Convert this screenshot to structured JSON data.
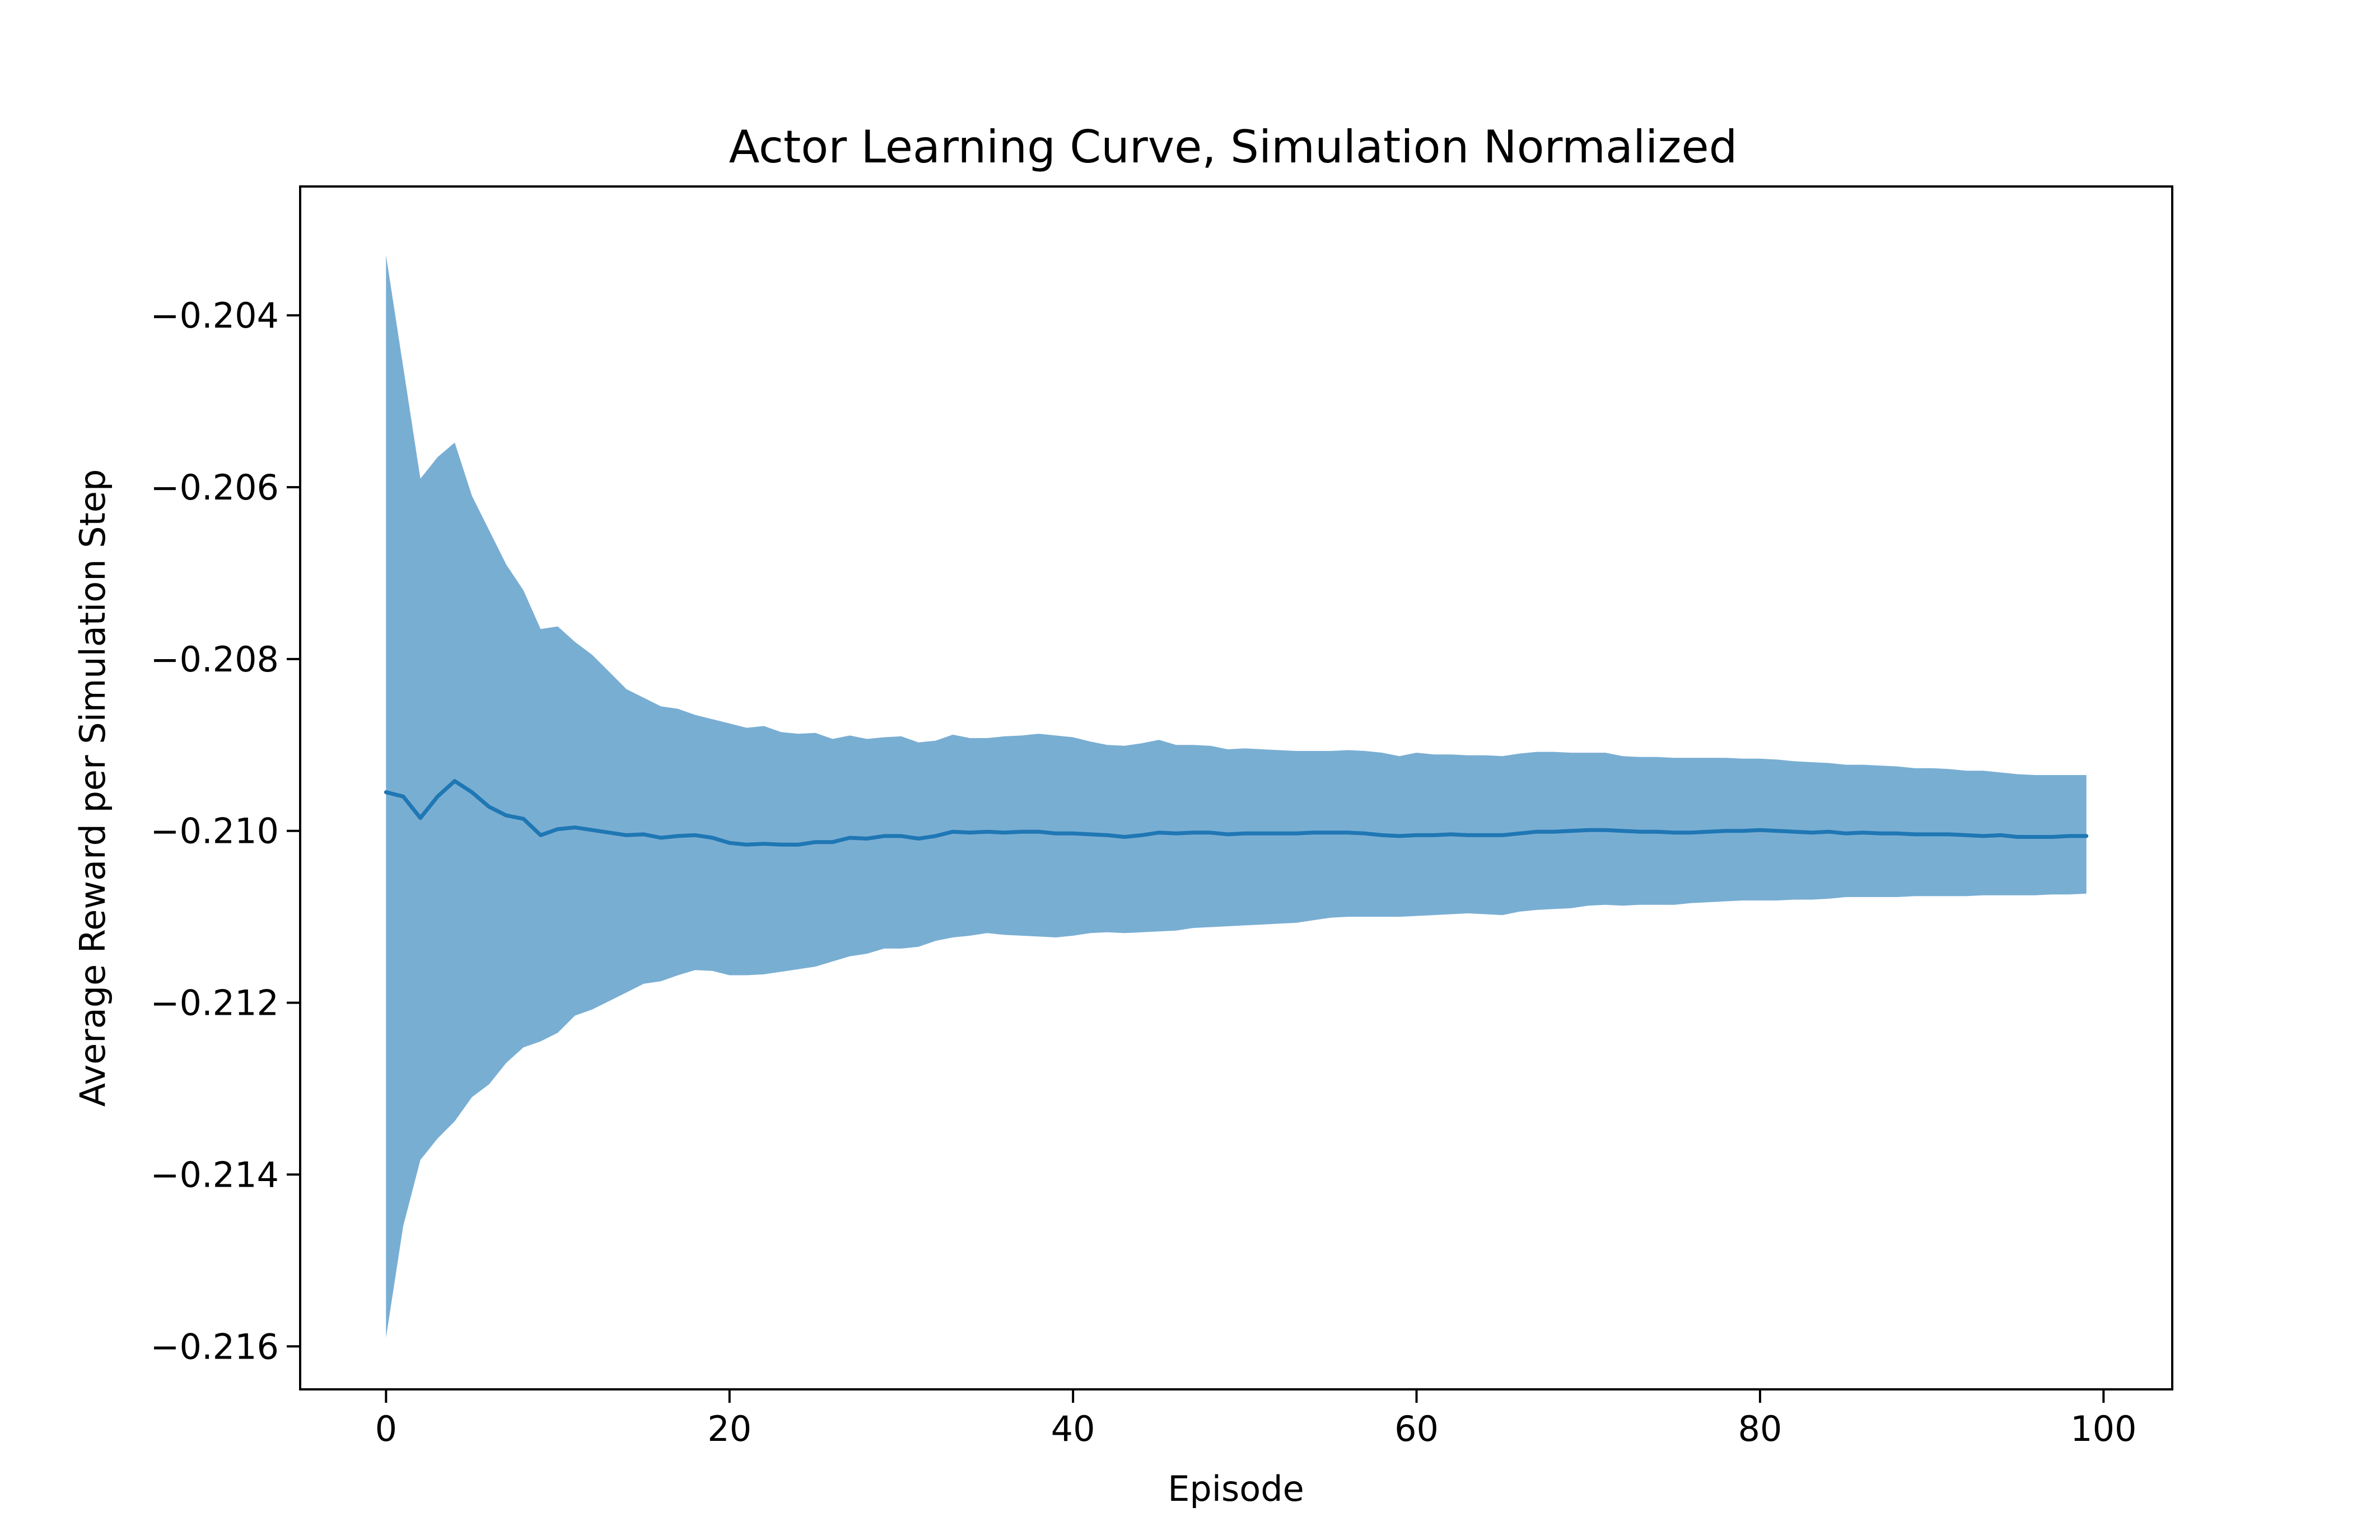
{
  "chart_data": {
    "type": "line",
    "title": "Actor Learning Curve, Simulation Normalized",
    "xlabel": "Episode",
    "ylabel": "Average Reward per Simulation Step",
    "xlim": [
      -5,
      104
    ],
    "ylim": [
      -0.2165,
      -0.2025
    ],
    "xticks": [
      0,
      20,
      40,
      60,
      80,
      100
    ],
    "yticks": [
      -0.204,
      -0.206,
      -0.208,
      -0.21,
      -0.212,
      -0.214,
      -0.216
    ],
    "xtick_labels": [
      "0",
      "20",
      "40",
      "60",
      "80",
      "100"
    ],
    "ytick_labels": [
      "−0.204",
      "−0.206",
      "−0.208",
      "−0.210",
      "−0.212",
      "−0.214",
      "−0.216"
    ],
    "grid": false,
    "colors": {
      "line": "#1f77b4",
      "band": "#79aed3"
    },
    "series": [
      {
        "x": [
          0,
          1,
          2,
          3,
          4,
          5,
          6,
          7,
          8,
          9,
          10,
          11,
          12,
          13,
          14,
          15,
          16,
          17,
          18,
          19,
          20,
          21,
          22,
          23,
          24,
          25,
          26,
          27,
          28,
          29,
          30,
          31,
          32,
          33,
          34,
          35,
          36,
          37,
          38,
          39,
          40,
          41,
          42,
          43,
          44,
          45,
          46,
          47,
          48,
          49,
          50,
          51,
          52,
          53,
          54,
          55,
          56,
          57,
          58,
          59,
          60,
          61,
          62,
          63,
          64,
          65,
          66,
          67,
          68,
          69,
          70,
          71,
          72,
          73,
          74,
          75,
          76,
          77,
          78,
          79,
          80,
          81,
          82,
          83,
          84,
          85,
          86,
          87,
          88,
          89,
          90,
          91,
          92,
          93,
          94,
          95,
          96,
          97,
          98,
          99
        ],
        "y": [
          -0.20955,
          -0.2096,
          -0.20985,
          -0.2096,
          -0.20942,
          -0.20955,
          -0.20972,
          -0.20982,
          -0.20986,
          -0.21005,
          -0.20998,
          -0.20996,
          -0.20999,
          -0.21002,
          -0.21005,
          -0.21004,
          -0.21008,
          -0.21006,
          -0.21005,
          -0.21008,
          -0.21014,
          -0.21016,
          -0.21015,
          -0.21016,
          -0.21016,
          -0.21013,
          -0.21013,
          -0.21008,
          -0.21009,
          -0.21006,
          -0.21006,
          -0.21009,
          -0.21006,
          -0.21001,
          -0.21002,
          -0.21001,
          -0.21002,
          -0.21001,
          -0.21001,
          -0.21003,
          -0.21003,
          -0.21004,
          -0.21005,
          -0.21007,
          -0.21005,
          -0.21002,
          -0.21003,
          -0.21002,
          -0.21002,
          -0.21004,
          -0.21003,
          -0.21003,
          -0.21003,
          -0.21003,
          -0.21002,
          -0.21002,
          -0.21002,
          -0.21003,
          -0.21005,
          -0.21006,
          -0.21005,
          -0.21005,
          -0.21004,
          -0.21005,
          -0.21005,
          -0.21005,
          -0.21003,
          -0.21001,
          -0.21001,
          -0.21,
          -0.20999,
          -0.20999,
          -0.21,
          -0.21001,
          -0.21001,
          -0.21002,
          -0.21002,
          -0.21001,
          -0.21,
          -0.21,
          -0.20999,
          -0.21,
          -0.21001,
          -0.21002,
          -0.21001,
          -0.21003,
          -0.21002,
          -0.21003,
          -0.21003,
          -0.21004,
          -0.21004,
          -0.21004,
          -0.21005,
          -0.21006,
          -0.21005,
          -0.21007,
          -0.21007,
          -0.21007,
          -0.21006,
          -0.21006
        ],
        "upper": [
          -0.2033,
          -0.2046,
          -0.2059,
          -0.20565,
          -0.20548,
          -0.2061,
          -0.2065,
          -0.2069,
          -0.2072,
          -0.20765,
          -0.20762,
          -0.2078,
          -0.20795,
          -0.20815,
          -0.20835,
          -0.20845,
          -0.20855,
          -0.20858,
          -0.20865,
          -0.2087,
          -0.20875,
          -0.2088,
          -0.20878,
          -0.20885,
          -0.20887,
          -0.20886,
          -0.20893,
          -0.20889,
          -0.20893,
          -0.20891,
          -0.2089,
          -0.20897,
          -0.20895,
          -0.20888,
          -0.20892,
          -0.20892,
          -0.2089,
          -0.20889,
          -0.20887,
          -0.20889,
          -0.20891,
          -0.20896,
          -0.209,
          -0.20901,
          -0.20898,
          -0.20894,
          -0.209,
          -0.209,
          -0.20901,
          -0.20905,
          -0.20904,
          -0.20905,
          -0.20906,
          -0.20907,
          -0.20907,
          -0.20907,
          -0.20906,
          -0.20907,
          -0.20909,
          -0.20913,
          -0.20909,
          -0.20911,
          -0.20911,
          -0.20912,
          -0.20912,
          -0.20913,
          -0.2091,
          -0.20908,
          -0.20908,
          -0.20909,
          -0.20909,
          -0.20909,
          -0.20913,
          -0.20914,
          -0.20914,
          -0.20915,
          -0.20915,
          -0.20915,
          -0.20915,
          -0.20916,
          -0.20916,
          -0.20917,
          -0.20919,
          -0.2092,
          -0.20921,
          -0.20923,
          -0.20923,
          -0.20924,
          -0.20925,
          -0.20927,
          -0.20927,
          -0.20928,
          -0.2093,
          -0.2093,
          -0.20932,
          -0.20934,
          -0.20935,
          -0.20935,
          -0.20935,
          -0.20935
        ],
        "lower": [
          -0.2159,
          -0.2146,
          -0.21383,
          -0.21358,
          -0.21338,
          -0.2131,
          -0.21295,
          -0.2127,
          -0.21252,
          -0.21245,
          -0.21235,
          -0.21215,
          -0.21208,
          -0.21198,
          -0.21188,
          -0.21178,
          -0.21175,
          -0.21168,
          -0.21162,
          -0.21163,
          -0.21168,
          -0.21168,
          -0.21167,
          -0.21164,
          -0.21161,
          -0.21158,
          -0.21152,
          -0.21146,
          -0.21143,
          -0.21137,
          -0.21137,
          -0.21135,
          -0.21128,
          -0.21124,
          -0.21122,
          -0.21119,
          -0.21121,
          -0.21122,
          -0.21123,
          -0.21124,
          -0.21122,
          -0.21119,
          -0.21118,
          -0.21119,
          -0.21118,
          -0.21117,
          -0.21116,
          -0.21113,
          -0.21112,
          -0.21111,
          -0.2111,
          -0.21109,
          -0.21108,
          -0.21107,
          -0.21104,
          -0.21101,
          -0.211,
          -0.211,
          -0.211,
          -0.211,
          -0.21099,
          -0.21098,
          -0.21097,
          -0.21096,
          -0.21097,
          -0.21098,
          -0.21094,
          -0.21092,
          -0.21091,
          -0.2109,
          -0.21087,
          -0.21086,
          -0.21087,
          -0.21086,
          -0.21086,
          -0.21086,
          -0.21084,
          -0.21083,
          -0.21082,
          -0.21081,
          -0.21081,
          -0.21081,
          -0.2108,
          -0.2108,
          -0.21079,
          -0.21077,
          -0.21077,
          -0.21077,
          -0.21077,
          -0.21076,
          -0.21076,
          -0.21076,
          -0.21076,
          -0.21075,
          -0.21075,
          -0.21075,
          -0.21075,
          -0.21074,
          -0.21074,
          -0.21073
        ]
      }
    ]
  }
}
